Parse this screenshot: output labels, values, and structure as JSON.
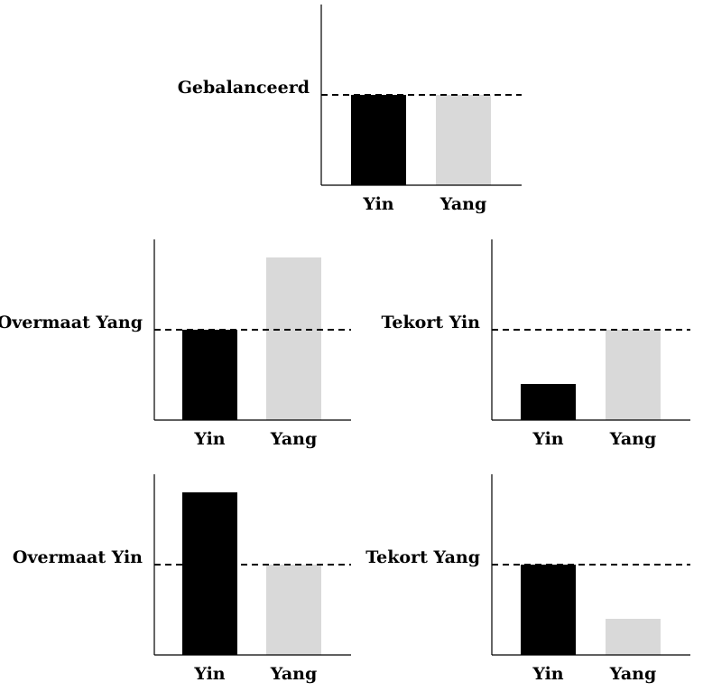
{
  "colors": {
    "yin": "#000000",
    "yang": "#d9d9d9",
    "axis": "#000000",
    "reference_line": "#000000"
  },
  "chart_data": [
    {
      "type": "bar",
      "title": "Gebalanceerd",
      "categories": [
        "Yin",
        "Yang"
      ],
      "values": [
        2,
        2
      ],
      "reference": 2,
      "ylim": [
        0,
        4
      ],
      "grid": false
    },
    {
      "type": "bar",
      "title": "Overmaat Yang",
      "categories": [
        "Yin",
        "Yang"
      ],
      "values": [
        2,
        3.6
      ],
      "reference": 2,
      "ylim": [
        0,
        4
      ],
      "grid": false
    },
    {
      "type": "bar",
      "title": "Tekort Yin",
      "categories": [
        "Yin",
        "Yang"
      ],
      "values": [
        0.8,
        2
      ],
      "reference": 2,
      "ylim": [
        0,
        4
      ],
      "grid": false
    },
    {
      "type": "bar",
      "title": "Overmaat Yin",
      "categories": [
        "Yin",
        "Yang"
      ],
      "values": [
        3.6,
        2
      ],
      "reference": 2,
      "ylim": [
        0,
        4
      ],
      "grid": false
    },
    {
      "type": "bar",
      "title": "Tekort Yang",
      "categories": [
        "Yin",
        "Yang"
      ],
      "values": [
        2,
        0.8
      ],
      "reference": 2,
      "ylim": [
        0,
        4
      ],
      "grid": false
    }
  ]
}
